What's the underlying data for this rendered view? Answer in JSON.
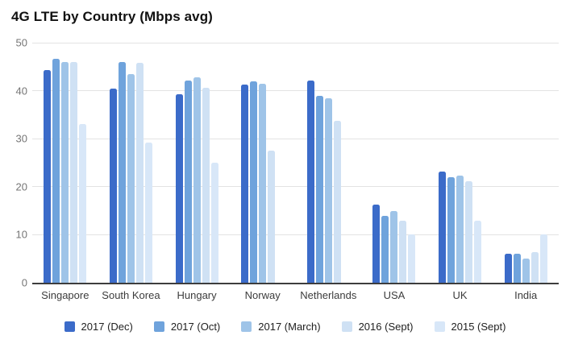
{
  "chart_data": {
    "type": "bar",
    "title": "4G LTE by Country (Mbps avg)",
    "xlabel": "",
    "ylabel": "",
    "ylim": [
      0,
      50
    ],
    "yticks": [
      0,
      10,
      20,
      30,
      40,
      50
    ],
    "grid": true,
    "legend_position": "bottom",
    "categories": [
      "Singapore",
      "South Korea",
      "Hungary",
      "Norway",
      "Netherlands",
      "USA",
      "UK",
      "India"
    ],
    "series": [
      {
        "name": "2017 (Dec)",
        "color": "#3B6BC9",
        "values": [
          44.3,
          40.4,
          39.2,
          41.2,
          42.1,
          16.3,
          23.1,
          6.1
        ]
      },
      {
        "name": "2017 (Oct)",
        "color": "#6FA3DC",
        "values": [
          46.6,
          45.9,
          42.1,
          42.0,
          39.0,
          13.9,
          21.9,
          6.1
        ]
      },
      {
        "name": "2017 (March)",
        "color": "#9FC4E8",
        "values": [
          45.9,
          43.5,
          42.8,
          41.4,
          38.4,
          14.9,
          22.4,
          5.1
        ]
      },
      {
        "name": "2016 (Sept)",
        "color": "#CFE1F4",
        "values": [
          45.9,
          45.8,
          40.6,
          27.5,
          33.8,
          12.9,
          21.1,
          6.4
        ]
      },
      {
        "name": "2015 (Sept)",
        "color": "#D8E7F8",
        "values": [
          33.0,
          29.2,
          25.0,
          null,
          null,
          10.0,
          13.0,
          10.0
        ]
      }
    ]
  },
  "colors": {
    "background": "#ffffff",
    "gridline": "#e3e3e3",
    "axis_line": "#3d3d3d",
    "tick_label": "#757575",
    "category_label": "#3c3c3c",
    "title": "#111111"
  }
}
